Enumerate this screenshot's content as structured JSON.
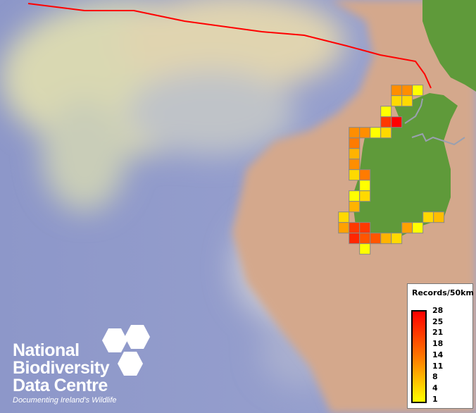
{
  "legend": {
    "title": "Records/50km",
    "ticks": [
      "28",
      "25",
      "21",
      "18",
      "14",
      "11",
      "8",
      "4",
      "1"
    ],
    "colors": {
      "low": "#ffff00",
      "mid": "#ff7700",
      "high": "#ff0000"
    }
  },
  "logo": {
    "line1": "National",
    "line2": "Biodiversity",
    "line3": "Data Centre",
    "tagline": "Documenting Ireland's Wildlife"
  },
  "map": {
    "boundary_color": "#ff0000",
    "land_color": "#5f9a3a",
    "shelf_color": "#d4a88c",
    "deep_sea_color": "#8a93c8",
    "grid_cells": [
      {
        "row": 0,
        "col": 5,
        "value": 13
      },
      {
        "row": 0,
        "col": 6,
        "value": 13
      },
      {
        "row": 0,
        "col": 7,
        "value": 1
      },
      {
        "row": 1,
        "col": 5,
        "value": 5
      },
      {
        "row": 1,
        "col": 6,
        "value": 5
      },
      {
        "row": 2,
        "col": 4,
        "value": 1
      },
      {
        "row": 3,
        "col": 4,
        "value": 22
      },
      {
        "row": 3,
        "col": 5,
        "value": 28
      },
      {
        "row": 4,
        "col": 1,
        "value": 13
      },
      {
        "row": 4,
        "col": 2,
        "value": 13
      },
      {
        "row": 4,
        "col": 3,
        "value": 1
      },
      {
        "row": 4,
        "col": 4,
        "value": 5
      },
      {
        "row": 5,
        "col": 1,
        "value": 15
      },
      {
        "row": 6,
        "col": 1,
        "value": 9
      },
      {
        "row": 7,
        "col": 1,
        "value": 13
      },
      {
        "row": 8,
        "col": 1,
        "value": 5
      },
      {
        "row": 8,
        "col": 2,
        "value": 15
      },
      {
        "row": 9,
        "col": 2,
        "value": 1
      },
      {
        "row": 10,
        "col": 1,
        "value": 1
      },
      {
        "row": 10,
        "col": 2,
        "value": 5
      },
      {
        "row": 11,
        "col": 1,
        "value": 9
      },
      {
        "row": 12,
        "col": 0,
        "value": 5
      },
      {
        "row": 12,
        "col": 8,
        "value": 5
      },
      {
        "row": 12,
        "col": 9,
        "value": 8
      },
      {
        "row": 13,
        "col": 0,
        "value": 11
      },
      {
        "row": 13,
        "col": 1,
        "value": 22
      },
      {
        "row": 13,
        "col": 2,
        "value": 22
      },
      {
        "row": 13,
        "col": 6,
        "value": 11
      },
      {
        "row": 13,
        "col": 7,
        "value": 1
      },
      {
        "row": 14,
        "col": 1,
        "value": 24
      },
      {
        "row": 14,
        "col": 2,
        "value": 19
      },
      {
        "row": 14,
        "col": 3,
        "value": 19
      },
      {
        "row": 14,
        "col": 4,
        "value": 9
      },
      {
        "row": 14,
        "col": 5,
        "value": 5
      },
      {
        "row": 15,
        "col": 2,
        "value": 1
      }
    ]
  }
}
